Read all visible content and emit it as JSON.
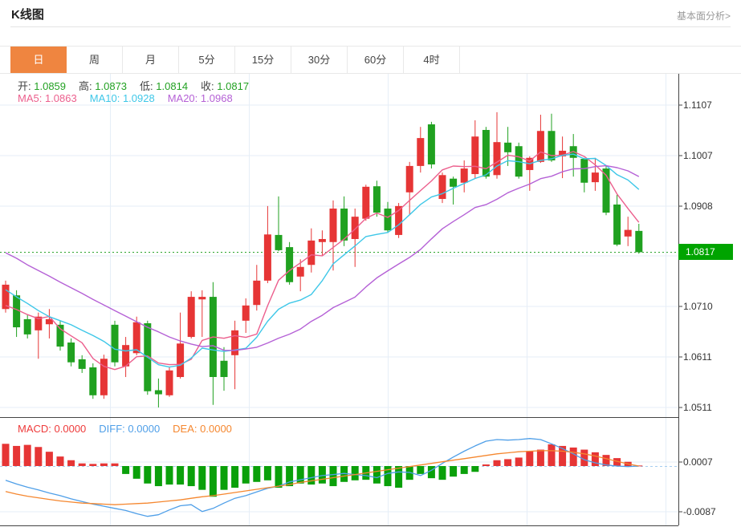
{
  "page": {
    "title": "K线图",
    "link_label": "基本面分析>"
  },
  "tabs": {
    "items": [
      "日",
      "周",
      "月",
      "5分",
      "15分",
      "30分",
      "60分",
      "4时"
    ],
    "active_index": 0
  },
  "legend": {
    "ohlc": [
      {
        "label": "开:",
        "value": "1.0859"
      },
      {
        "label": "高:",
        "value": "1.0873"
      },
      {
        "label": "低:",
        "value": "1.0814"
      },
      {
        "label": "收:",
        "value": "1.0817"
      }
    ],
    "ma": [
      {
        "label": "MA5:",
        "value": "1.0863"
      },
      {
        "label": "MA10:",
        "value": "1.0928"
      },
      {
        "label": "MA20:",
        "value": "1.0968"
      }
    ],
    "macd": [
      {
        "label": "MACD:",
        "value": "0.0000"
      },
      {
        "label": "DIFF:",
        "value": "0.0000"
      },
      {
        "label": "DEA:",
        "value": "0.0000"
      }
    ]
  },
  "axis": {
    "price_labels": [
      "1.1107",
      "1.1007",
      "1.0908",
      "1.0710",
      "1.0611",
      "1.0511"
    ],
    "price_values": [
      1.1107,
      1.1007,
      1.0908,
      1.071,
      1.0611,
      1.0511
    ],
    "macd_labels": [
      "0.0007",
      "-0.0087"
    ],
    "macd_values": [
      0.0007,
      -0.0087
    ],
    "badge_label": "1.0817"
  },
  "chart_data": {
    "type": "candlestick+macd",
    "title": "K线图 (日K)",
    "legend_position": "top-left",
    "grid": true,
    "price_panel": {
      "ylim": [
        1.0492,
        1.117
      ],
      "ytick_values": [
        1.1107,
        1.1007,
        1.0908,
        1.071,
        1.0611,
        1.0511
      ],
      "hidden_gridline_value": 1.0809,
      "last_price": 1.0817,
      "candles_ohlc": [
        [
          1.0705,
          1.0761,
          1.0698,
          1.0753
        ],
        [
          1.0732,
          1.0742,
          1.065,
          1.0669
        ],
        [
          1.0685,
          1.0693,
          1.0647,
          1.0655
        ],
        [
          1.0663,
          1.0698,
          1.0607,
          1.069
        ],
        [
          1.0675,
          1.0705,
          1.0647,
          1.0685
        ],
        [
          1.0674,
          1.0682,
          1.0623,
          1.0631
        ],
        [
          1.0639,
          1.0647,
          1.0592,
          1.06
        ],
        [
          1.0606,
          1.0614,
          1.0579,
          1.0587
        ],
        [
          1.059,
          1.0598,
          1.0528,
          1.0535
        ],
        [
          1.0535,
          1.0615,
          1.0528,
          1.0607
        ],
        [
          1.0674,
          1.0682,
          1.0592,
          1.06
        ],
        [
          1.0592,
          1.065,
          1.0571,
          1.0634
        ],
        [
          1.0618,
          1.069,
          1.0614,
          1.0679
        ],
        [
          1.0677,
          1.0682,
          1.0536,
          1.0543
        ],
        [
          1.0545,
          1.0568,
          1.0511,
          1.0537
        ],
        [
          1.0535,
          1.059,
          1.0532,
          1.0584
        ],
        [
          1.0571,
          1.0698,
          1.0568,
          1.0637
        ],
        [
          1.065,
          1.074,
          1.0647,
          1.0729
        ],
        [
          1.0724,
          1.0742,
          1.065,
          1.0729
        ],
        [
          1.0729,
          1.0758,
          1.0516,
          1.0571
        ],
        [
          1.0603,
          1.063,
          1.0544,
          1.0571
        ],
        [
          1.0614,
          1.0682,
          1.0547,
          1.0663
        ],
        [
          1.0682,
          1.0726,
          1.0658,
          1.0712
        ],
        [
          1.0713,
          1.0792,
          1.0702,
          1.0761
        ],
        [
          1.0761,
          1.0908,
          1.0756,
          1.0852
        ],
        [
          1.0851,
          1.0927,
          1.0819,
          1.0821
        ],
        [
          1.0827,
          1.0837,
          1.0753,
          1.0758
        ],
        [
          1.0769,
          1.0803,
          1.074,
          1.0788
        ],
        [
          1.0792,
          1.0864,
          1.0777,
          1.084
        ],
        [
          1.0837,
          1.086,
          1.0811,
          1.0843
        ],
        [
          1.0837,
          1.0919,
          1.0781,
          1.0903
        ],
        [
          1.0903,
          1.0927,
          1.0829,
          1.084
        ],
        [
          1.0843,
          1.0903,
          1.0788,
          1.0887
        ],
        [
          1.0883,
          1.095,
          1.0879,
          1.0946
        ],
        [
          1.0947,
          1.0958,
          1.0887,
          1.0895
        ],
        [
          1.0903,
          1.0916,
          1.0856,
          1.086
        ],
        [
          1.0851,
          1.0914,
          1.0845,
          1.0908
        ],
        [
          1.0935,
          1.0995,
          1.0892,
          1.0987
        ],
        [
          1.0987,
          1.1064,
          1.0974,
          1.1042
        ],
        [
          1.1069,
          1.1074,
          1.0982,
          1.099
        ],
        [
          1.0922,
          1.0974,
          1.0914,
          1.0969
        ],
        [
          1.0962,
          1.0966,
          1.0911,
          1.0946
        ],
        [
          1.0954,
          1.0998,
          1.0935,
          1.0982
        ],
        [
          1.0971,
          1.1077,
          1.0963,
          1.1045
        ],
        [
          1.1058,
          1.1064,
          1.0962,
          1.0966
        ],
        [
          1.0969,
          1.1093,
          1.0962,
          1.1034
        ],
        [
          1.1033,
          1.1064,
          1.0987,
          1.1014
        ],
        [
          1.1026,
          1.1033,
          1.0962,
          1.0966
        ],
        [
          1.0979,
          1.1006,
          1.0938,
          1.1003
        ],
        [
          1.0995,
          1.1088,
          1.0993,
          1.1056
        ],
        [
          1.1056,
          1.109,
          1.0995,
          1.0998
        ],
        [
          1.1006,
          1.1045,
          1.0963,
          1.1017
        ],
        [
          1.1026,
          1.105,
          1.0966,
          1.1003
        ],
        [
          1.1001,
          1.1003,
          1.0935,
          1.0954
        ],
        [
          1.0955,
          1.1003,
          1.0938,
          1.0974
        ],
        [
          1.0982,
          1.0987,
          1.089,
          1.0895
        ],
        [
          1.0911,
          1.093,
          1.0829,
          1.0832
        ],
        [
          1.0848,
          1.0887,
          1.0829,
          1.0861
        ],
        [
          1.0859,
          1.0873,
          1.0814,
          1.0817
        ]
      ],
      "ma5_current": 1.0863,
      "ma10_current": 1.0928,
      "ma20_current": 1.0968,
      "ma5_seed": [
        1.0712,
        1.0704,
        1.0694,
        1.0686
      ],
      "ma10_seed": [
        1.0743,
        1.0729,
        1.0716,
        1.0702,
        1.069,
        1.0682,
        1.0674,
        1.0663,
        1.0653
      ],
      "ma20_seed": [
        1.0816,
        1.0805,
        1.0792,
        1.0781,
        1.077,
        1.0758,
        1.0747,
        1.0736,
        1.0724,
        1.0713,
        1.0702,
        1.0691,
        1.068,
        1.0669,
        1.066,
        1.065,
        1.0642,
        1.0636,
        1.0631
      ]
    },
    "macd_panel": {
      "ytick_values": [
        0.0007,
        -0.0087
      ],
      "hist": [
        0.0042,
        0.0038,
        0.004,
        0.0036,
        0.0027,
        0.0018,
        0.0011,
        0.0005,
        0.0004,
        0.0005,
        0.0005,
        -0.0015,
        -0.0024,
        -0.0033,
        -0.0038,
        -0.0035,
        -0.0035,
        -0.0038,
        -0.0045,
        -0.0058,
        -0.0045,
        -0.0041,
        -0.0033,
        -0.003,
        -0.0027,
        -0.0041,
        -0.0038,
        -0.0033,
        -0.0035,
        -0.0033,
        -0.0038,
        -0.003,
        -0.0027,
        -0.0026,
        -0.0033,
        -0.0038,
        -0.0041,
        -0.0026,
        -0.0015,
        -0.0023,
        -0.0026,
        -0.002,
        -0.0015,
        -0.0011,
        0.0003,
        0.0011,
        0.0013,
        0.0016,
        0.0028,
        0.0031,
        0.0041,
        0.0038,
        0.0035,
        0.0031,
        0.0026,
        0.0021,
        0.0015,
        0.0008,
        0.0001
      ],
      "diff": [
        -0.0027,
        -0.0034,
        -0.004,
        -0.0045,
        -0.0051,
        -0.0056,
        -0.0062,
        -0.0067,
        -0.0072,
        -0.0076,
        -0.008,
        -0.0084,
        -0.009,
        -0.0095,
        -0.0092,
        -0.0083,
        -0.0075,
        -0.0073,
        -0.0086,
        -0.008,
        -0.007,
        -0.0061,
        -0.0056,
        -0.0049,
        -0.0042,
        -0.0038,
        -0.003,
        -0.0026,
        -0.0022,
        -0.0018,
        -0.0016,
        -0.0014,
        -0.0016,
        -0.0018,
        -0.0022,
        -0.0014,
        -0.0011,
        -0.0012,
        -0.0018,
        -0.0008,
        0.0005,
        0.0017,
        0.0028,
        0.0038,
        0.0047,
        0.005,
        0.0049,
        0.005,
        0.0052,
        0.005,
        0.0042,
        0.0033,
        0.0023,
        0.0012,
        0.0006,
        0.0002,
        0.0,
        -0.0001,
        0.0
      ],
      "dea": [
        -0.0048,
        -0.0053,
        -0.0057,
        -0.006,
        -0.0063,
        -0.0066,
        -0.0068,
        -0.007,
        -0.0071,
        -0.0072,
        -0.0073,
        -0.0072,
        -0.0071,
        -0.007,
        -0.0068,
        -0.0066,
        -0.0064,
        -0.0061,
        -0.0058,
        -0.0056,
        -0.0053,
        -0.005,
        -0.0047,
        -0.0044,
        -0.0041,
        -0.0038,
        -0.0035,
        -0.0031,
        -0.0028,
        -0.0025,
        -0.0022,
        -0.0019,
        -0.0016,
        -0.0013,
        -0.001,
        -0.0007,
        -0.0004,
        -0.0001,
        0.0002,
        0.0005,
        0.0008,
        0.0011,
        0.0014,
        0.0017,
        0.002,
        0.0023,
        0.0025,
        0.0027,
        0.0028,
        0.0029,
        0.0029,
        0.0028,
        0.0026,
        0.0023,
        0.0019,
        0.0014,
        0.0009,
        0.0004,
        0.0
      ]
    },
    "colors": {
      "up": "#e63535",
      "down": "#20a120",
      "ma5": "#ec5f8d",
      "ma10": "#3ec7e8",
      "ma20": "#b561d6",
      "macd_up": "#e63535",
      "macd_down": "#0aa00a",
      "diff_line": "#4f9fe8",
      "dea_line": "#f5872f",
      "grid": "#e6eef7",
      "axis": "#444444",
      "last_price_line": "#2ba52b",
      "badge_bg": "#00a400",
      "zero_dashed": "#a5cdf0",
      "tab_active_bg": "#ef8540",
      "legend_value_green": "#22a122"
    }
  }
}
